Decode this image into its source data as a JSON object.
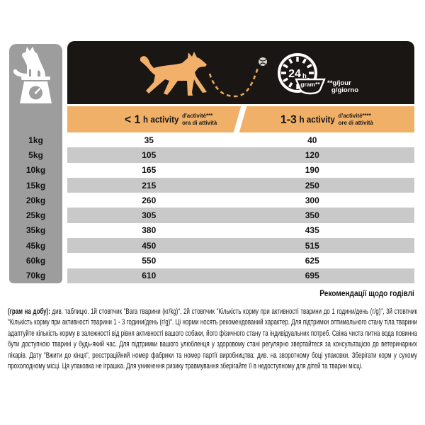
{
  "header": {
    "left_icon": "dog-on-scale",
    "running_dog_icon": "running-dog",
    "bounce_path_icon": "dashed-ball-trajectory",
    "clock": {
      "hours": "24",
      "unit": "h"
    },
    "bowl_label": "gram**",
    "per_day_line1": "**g/jour",
    "per_day_line2": "g/giorno"
  },
  "activity_header": {
    "left": {
      "prefix": "< 1",
      "unit": "h activity",
      "sub1": "d'activité***",
      "sub2": "ora di attività"
    },
    "right": {
      "prefix": "1-3",
      "unit": "h activity",
      "sub1": "d'activité****",
      "sub2": "ore di attività"
    }
  },
  "table": {
    "rows": [
      {
        "weight": "1kg",
        "lt1h": "35",
        "h13": "40"
      },
      {
        "weight": "5kg",
        "lt1h": "105",
        "h13": "120"
      },
      {
        "weight": "10kg",
        "lt1h": "165",
        "h13": "190"
      },
      {
        "weight": "15kg",
        "lt1h": "215",
        "h13": "250"
      },
      {
        "weight": "20kg",
        "lt1h": "260",
        "h13": "300"
      },
      {
        "weight": "25kg",
        "lt1h": "305",
        "h13": "350"
      },
      {
        "weight": "35kg",
        "lt1h": "380",
        "h13": "435"
      },
      {
        "weight": "45kg",
        "lt1h": "450",
        "h13": "515"
      },
      {
        "weight": "60kg",
        "lt1h": "550",
        "h13": "625"
      },
      {
        "weight": "70kg",
        "lt1h": "610",
        "h13": "695"
      }
    ]
  },
  "footer": {
    "heading": "Рекомендації щодо годівлі",
    "lead": "(грам на добу):",
    "body": " див. таблицю. 1й стовпчик \"Вага тварини (кг/kg)\", 2й стовпчик \"Кількість корму при активності тварини до 1 години/день (г/g)\", 3й стовпчик \"Кількість корму при активності тварини 1 - 3 години/день (г/g)\". Ці норми носять рекомендований характер. Для підтримки оптимального стану тіла тварини адаптуйте кількість корму в залежності від рівня активності вашого собаки, його фізичного стану та індивідуальних потреб. Свіжа чиста питна вода повинна бути доступною тварині у будь-який час. Для підтримки вашого улюбленця у здоровому стані регулярно звертайтеся за консультацією до ветеринарних лікарів. Дату \"Вжити до кінця\", реєстраційний номер фабрики та номер партії виробництва: див. на зворотному боці упаковки. Зберігати корм у сухому прохолодному місці. Ця упаковка не іграшка. Для уникнення ризику травмування зберігайте її в недоступному для дітей та тварин місці."
  },
  "colors": {
    "accent_orange": "#F1B068",
    "header_black": "#1A1613",
    "column_gray": "#9D9D9D",
    "stripe_gray": "#C9C9C9",
    "text": "#161616",
    "white": "#FFFFFF"
  },
  "chart_data": {
    "type": "table",
    "columns": [
      "",
      "< 1 h activity (g/day)",
      "1-3 h activity (g/day)"
    ],
    "rows": [
      [
        "1kg",
        35,
        40
      ],
      [
        "5kg",
        105,
        120
      ],
      [
        "10kg",
        165,
        190
      ],
      [
        "15kg",
        215,
        250
      ],
      [
        "20kg",
        260,
        300
      ],
      [
        "25kg",
        305,
        350
      ],
      [
        "35kg",
        380,
        435
      ],
      [
        "45kg",
        450,
        515
      ],
      [
        "60kg",
        550,
        625
      ],
      [
        "70kg",
        610,
        695
      ]
    ]
  }
}
